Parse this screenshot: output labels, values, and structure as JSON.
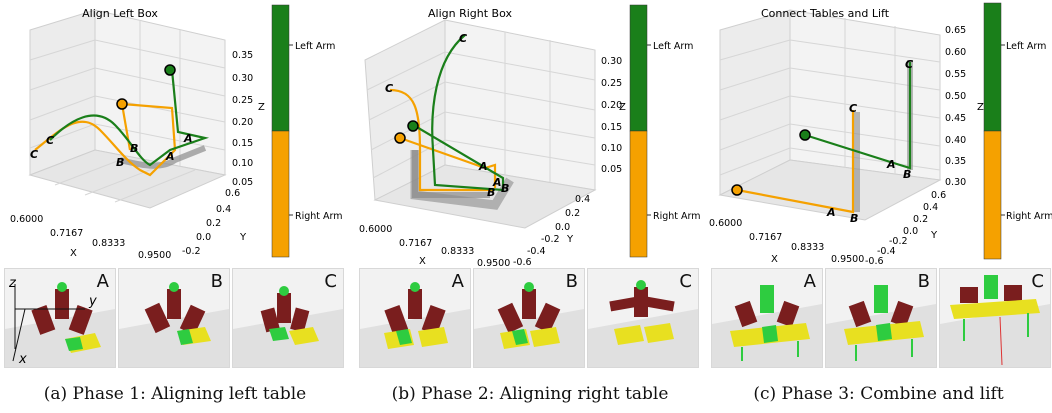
{
  "colors": {
    "left_arm": "#1a7f1a",
    "right_arm": "#f5a100",
    "shadow": "#8c8c8c",
    "robot": "#7a1e1e",
    "box_yellow": "#e8e020",
    "box_green": "#2ecc40"
  },
  "colorbar": {
    "top_label": "Left Arm",
    "bottom_label": "Right Arm"
  },
  "panels": [
    {
      "title": "Align Left Box",
      "caption": "(a) Phase 1: Aligning left table",
      "x_ticks": [
        "0.6000",
        "0.7167",
        "0.8333",
        "0.9500"
      ],
      "y_ticks": [
        "0.6",
        "0.4",
        "0.2",
        "0.0",
        "-0.2"
      ],
      "z_ticks": [
        "0.35",
        "0.30",
        "0.25",
        "0.20",
        "0.15",
        "0.10",
        "0.05"
      ],
      "x_label": "X",
      "y_label": "Y",
      "z_label": "Z",
      "point_labels": [
        "C",
        "C",
        "B",
        "B",
        "A",
        "A"
      ],
      "thumb_labels": [
        "A",
        "B",
        "C"
      ],
      "axis_labels": {
        "z": "z",
        "y": "y",
        "x": "x"
      }
    },
    {
      "title": "Align Right Box",
      "caption": "(b) Phase 2: Aligning right table",
      "x_ticks": [
        "0.6000",
        "0.7167",
        "0.8333",
        "0.9500"
      ],
      "y_ticks": [
        "0.4",
        "0.2",
        "0.0",
        "-0.2",
        "-0.4",
        "-0.6"
      ],
      "z_ticks": [
        "0.30",
        "0.25",
        "0.20",
        "0.15",
        "0.10",
        "0.05"
      ],
      "x_label": "X",
      "y_label": "Y",
      "z_label": "Z",
      "point_labels": [
        "C",
        "C",
        "A",
        "A",
        "B",
        "B"
      ],
      "thumb_labels": [
        "A",
        "B",
        "C"
      ]
    },
    {
      "title": "Connect Tables and Lift",
      "caption": "(c) Phase 3: Combine and lift",
      "x_ticks": [
        "0.6000",
        "0.7167",
        "0.8333",
        "0.9500"
      ],
      "y_ticks": [
        "0.6",
        "0.4",
        "0.2",
        "0.0",
        "-0.2",
        "-0.4",
        "-0.6"
      ],
      "z_ticks": [
        "0.65",
        "0.60",
        "0.55",
        "0.50",
        "0.45",
        "0.40",
        "0.35",
        "0.30"
      ],
      "x_label": "X",
      "y_label": "Y",
      "z_label": "Z",
      "point_labels": [
        "C",
        "C",
        "A",
        "B",
        "A",
        "B"
      ],
      "thumb_labels": [
        "A",
        "B",
        "C"
      ]
    }
  ]
}
